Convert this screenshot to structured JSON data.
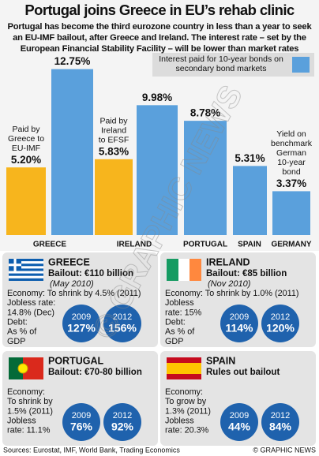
{
  "header": {
    "title": "Portugal joins Greece in EU’s rehab clinic",
    "subtitle": "Portugal has become the third eurozone country in less than a year to seek an EU-IMF bailout, after Greece and Ireland. The interest rate – set by the European Financial Stability Facility – will be lower than market rates"
  },
  "chart_data": {
    "type": "bar",
    "categories": [
      "GREECE",
      "IRELAND",
      "PORTUGAL",
      "SPAIN",
      "GERMANY"
    ],
    "series": [
      {
        "name": "Interest paid for 10-year bonds on secondary bond markets",
        "color": "#5aa0dc",
        "values": [
          12.75,
          9.98,
          8.78,
          5.31,
          3.37
        ],
        "value_labels": [
          "12.75%",
          "9.98%",
          "8.78%",
          "5.31%",
          "3.37%"
        ]
      },
      {
        "color": "#f7b51d",
        "values": [
          5.2,
          5.83,
          null,
          null,
          null
        ],
        "value_labels": [
          "5.20%",
          "5.83%",
          null,
          null,
          null
        ]
      }
    ],
    "annotations": [
      [
        "Paid by",
        "Greece to",
        "EU-IMF"
      ],
      [
        "Paid by",
        "Ireland",
        "to EFSF"
      ],
      [
        "Yield on",
        "benchmark",
        "German",
        "10-year",
        "bond"
      ]
    ],
    "ylim": [
      0,
      14
    ]
  },
  "panels": [
    {
      "name": "GREECE",
      "bailout": "Bailout: €110 billion",
      "date": "(May 2010)",
      "lines": [
        "Economy: To shrink by 4.5% (2011)",
        "Jobless rate:",
        "14.8% (Dec)",
        "Debt:",
        "As % of",
        "GDP"
      ],
      "circles": [
        {
          "year": "2009",
          "value": "127%"
        },
        {
          "year": "2012",
          "value": "156%"
        }
      ]
    },
    {
      "name": "IRELAND",
      "bailout": "Bailout: €85 billion",
      "date": "(Nov 2010)",
      "lines": [
        "Economy: To shrink by 1.0% (2011)",
        "Jobless",
        "rate: 15%",
        "Debt:",
        "As % of",
        "GDP"
      ],
      "circles": [
        {
          "year": "2009",
          "value": "114%"
        },
        {
          "year": "2012",
          "value": "120%"
        }
      ]
    },
    {
      "name": "PORTUGAL",
      "bailout": "Bailout: €70-80 billion",
      "lines": [
        "Economy:",
        "To shrink by",
        "1.5% (2011)",
        "Jobless",
        "rate: 11.1%"
      ],
      "circles": [
        {
          "year": "2009",
          "value": "76%"
        },
        {
          "year": "2012",
          "value": "92%"
        }
      ]
    },
    {
      "name": "SPAIN",
      "bailout": "Rules out bailout",
      "lines": [
        "Economy:",
        "To grow by",
        "1.3% (2011)",
        "Jobless",
        "rate: 20.3%"
      ],
      "circles": [
        {
          "year": "2009",
          "value": "44%"
        },
        {
          "year": "2012",
          "value": "84%"
        }
      ]
    }
  ],
  "footer": {
    "sources": "Sources: Eurostat, IMF, World Bank, Trading Economics",
    "credit": "© GRAPHIC NEWS"
  },
  "watermark": "© GRAPHIC NEWS"
}
